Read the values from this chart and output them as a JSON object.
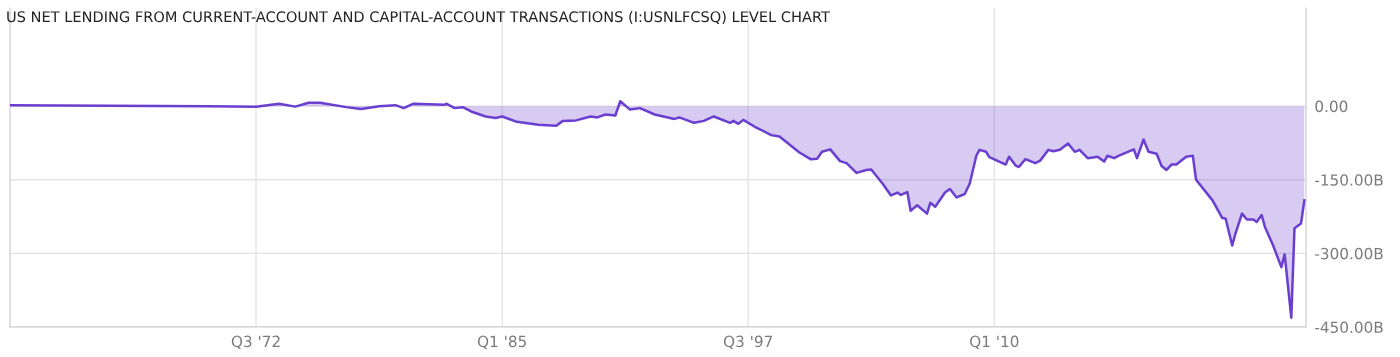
{
  "chart_data": {
    "type": "area",
    "title": "US NET LENDING FROM CURRENT-ACCOUNT AND CAPITAL-ACCOUNT TRANSACTIONS (I:USNLFCSQ) LEVEL CHART",
    "x": [
      "1960-01",
      "1965-01",
      "1970-01",
      "1972-07",
      "1973-09",
      "1974-07",
      "1975-03",
      "1975-10",
      "1977-02",
      "1977-11",
      "1978-10",
      "1979-08",
      "1980-01",
      "1980-07",
      "1982-02",
      "1982-03",
      "1982-08",
      "1983-01",
      "1983-07",
      "1984-03",
      "1984-09",
      "1985-01",
      "1985-10",
      "1986-11",
      "1987-10",
      "1988-02",
      "1988-10",
      "1989-07",
      "1989-11",
      "1990-04",
      "1990-10",
      "1991-01",
      "1991-07",
      "1992-01",
      "1992-10",
      "1993-10",
      "1994-01",
      "1994-10",
      "1995-04",
      "1995-10",
      "1996-08",
      "1996-10",
      "1997-01",
      "1997-04",
      "1997-11",
      "1998-09",
      "1999-02",
      "2000-02",
      "2000-09",
      "2001-01",
      "2001-04",
      "2001-09",
      "2002-03",
      "2002-07",
      "2003-01",
      "2003-07",
      "2003-10",
      "2004-05",
      "2004-10",
      "2005-02",
      "2005-04",
      "2005-08",
      "2005-10",
      "2006-02",
      "2006-08",
      "2006-10",
      "2007-01",
      "2007-07",
      "2007-10",
      "2008-02",
      "2008-07",
      "2008-10",
      "2009-02",
      "2009-04",
      "2009-08",
      "2009-10",
      "2010-08",
      "2010-10",
      "2011-02",
      "2011-04",
      "2011-08",
      "2012-02",
      "2012-05",
      "2012-10",
      "2013-01",
      "2013-05",
      "2013-10",
      "2014-02",
      "2014-05",
      "2014-10",
      "2015-04",
      "2015-08",
      "2015-10",
      "2016-02",
      "2016-05",
      "2017-02",
      "2017-04",
      "2017-08",
      "2017-11",
      "2018-04",
      "2018-07",
      "2018-10",
      "2019-01",
      "2019-04",
      "2019-10",
      "2020-02",
      "2020-04",
      "2021-02",
      "2021-08",
      "2021-10",
      "2022-02",
      "2022-04",
      "2022-08",
      "2022-11",
      "2023-03",
      "2023-05",
      "2023-08",
      "2023-10",
      "2024-03",
      "2024-08",
      "2024-10",
      "2025-02",
      "2025-04",
      "2025-08",
      "2025-10"
    ],
    "series": [
      {
        "color": "#6a3fd0",
        "values": [
          2,
          1,
          0,
          -1,
          5,
          -1,
          7,
          7,
          -2,
          -6,
          0,
          2,
          -4,
          5,
          3,
          5,
          -4,
          -2,
          -12,
          -21,
          -24,
          -21,
          -32,
          -38,
          -40,
          -30,
          -29,
          -21,
          -23,
          -17,
          -19,
          10,
          -7,
          -4,
          -17,
          -26,
          -23,
          -34,
          -30,
          -21,
          -34,
          -30,
          -36,
          -28,
          -42,
          -59,
          -62,
          -94,
          -108,
          -107,
          -93,
          -88,
          -112,
          -116,
          -136,
          -130,
          -129,
          -158,
          -182,
          -176,
          -181,
          -175,
          -213,
          -202,
          -219,
          -197,
          -205,
          -176,
          -169,
          -186,
          -179,
          -158,
          -101,
          -89,
          -93,
          -104,
          -119,
          -103,
          -121,
          -124,
          -108,
          -116,
          -111,
          -89,
          -92,
          -89,
          -76,
          -93,
          -89,
          -106,
          -103,
          -113,
          -101,
          -106,
          -101,
          -88,
          -106,
          -68,
          -93,
          -97,
          -122,
          -130,
          -119,
          -119,
          -103,
          -101,
          -150,
          -192,
          -228,
          -229,
          -284,
          -260,
          -219,
          -231,
          -231,
          -236,
          -222,
          -246,
          -284,
          -328,
          -302,
          -431,
          -249,
          -239,
          -192
        ]
      }
    ],
    "xlim": [
      "1960-01",
      "2025-11"
    ],
    "xticks": [
      {
        "value": "1972-07",
        "label": "Q3 '72"
      },
      {
        "value": "1985-01",
        "label": "Q1 '85"
      },
      {
        "value": "1997-07",
        "label": "Q3 '97"
      },
      {
        "value": "2010-01",
        "label": "Q1 '10"
      }
    ],
    "ylim": [
      -450,
      200
    ],
    "yticks": [
      {
        "value": 0,
        "label": "0.00"
      },
      {
        "value": -150,
        "label": "-150.00B"
      },
      {
        "value": -300,
        "label": "-300.00B"
      },
      {
        "value": -450,
        "label": "-450.00B"
      }
    ],
    "grid": true
  }
}
